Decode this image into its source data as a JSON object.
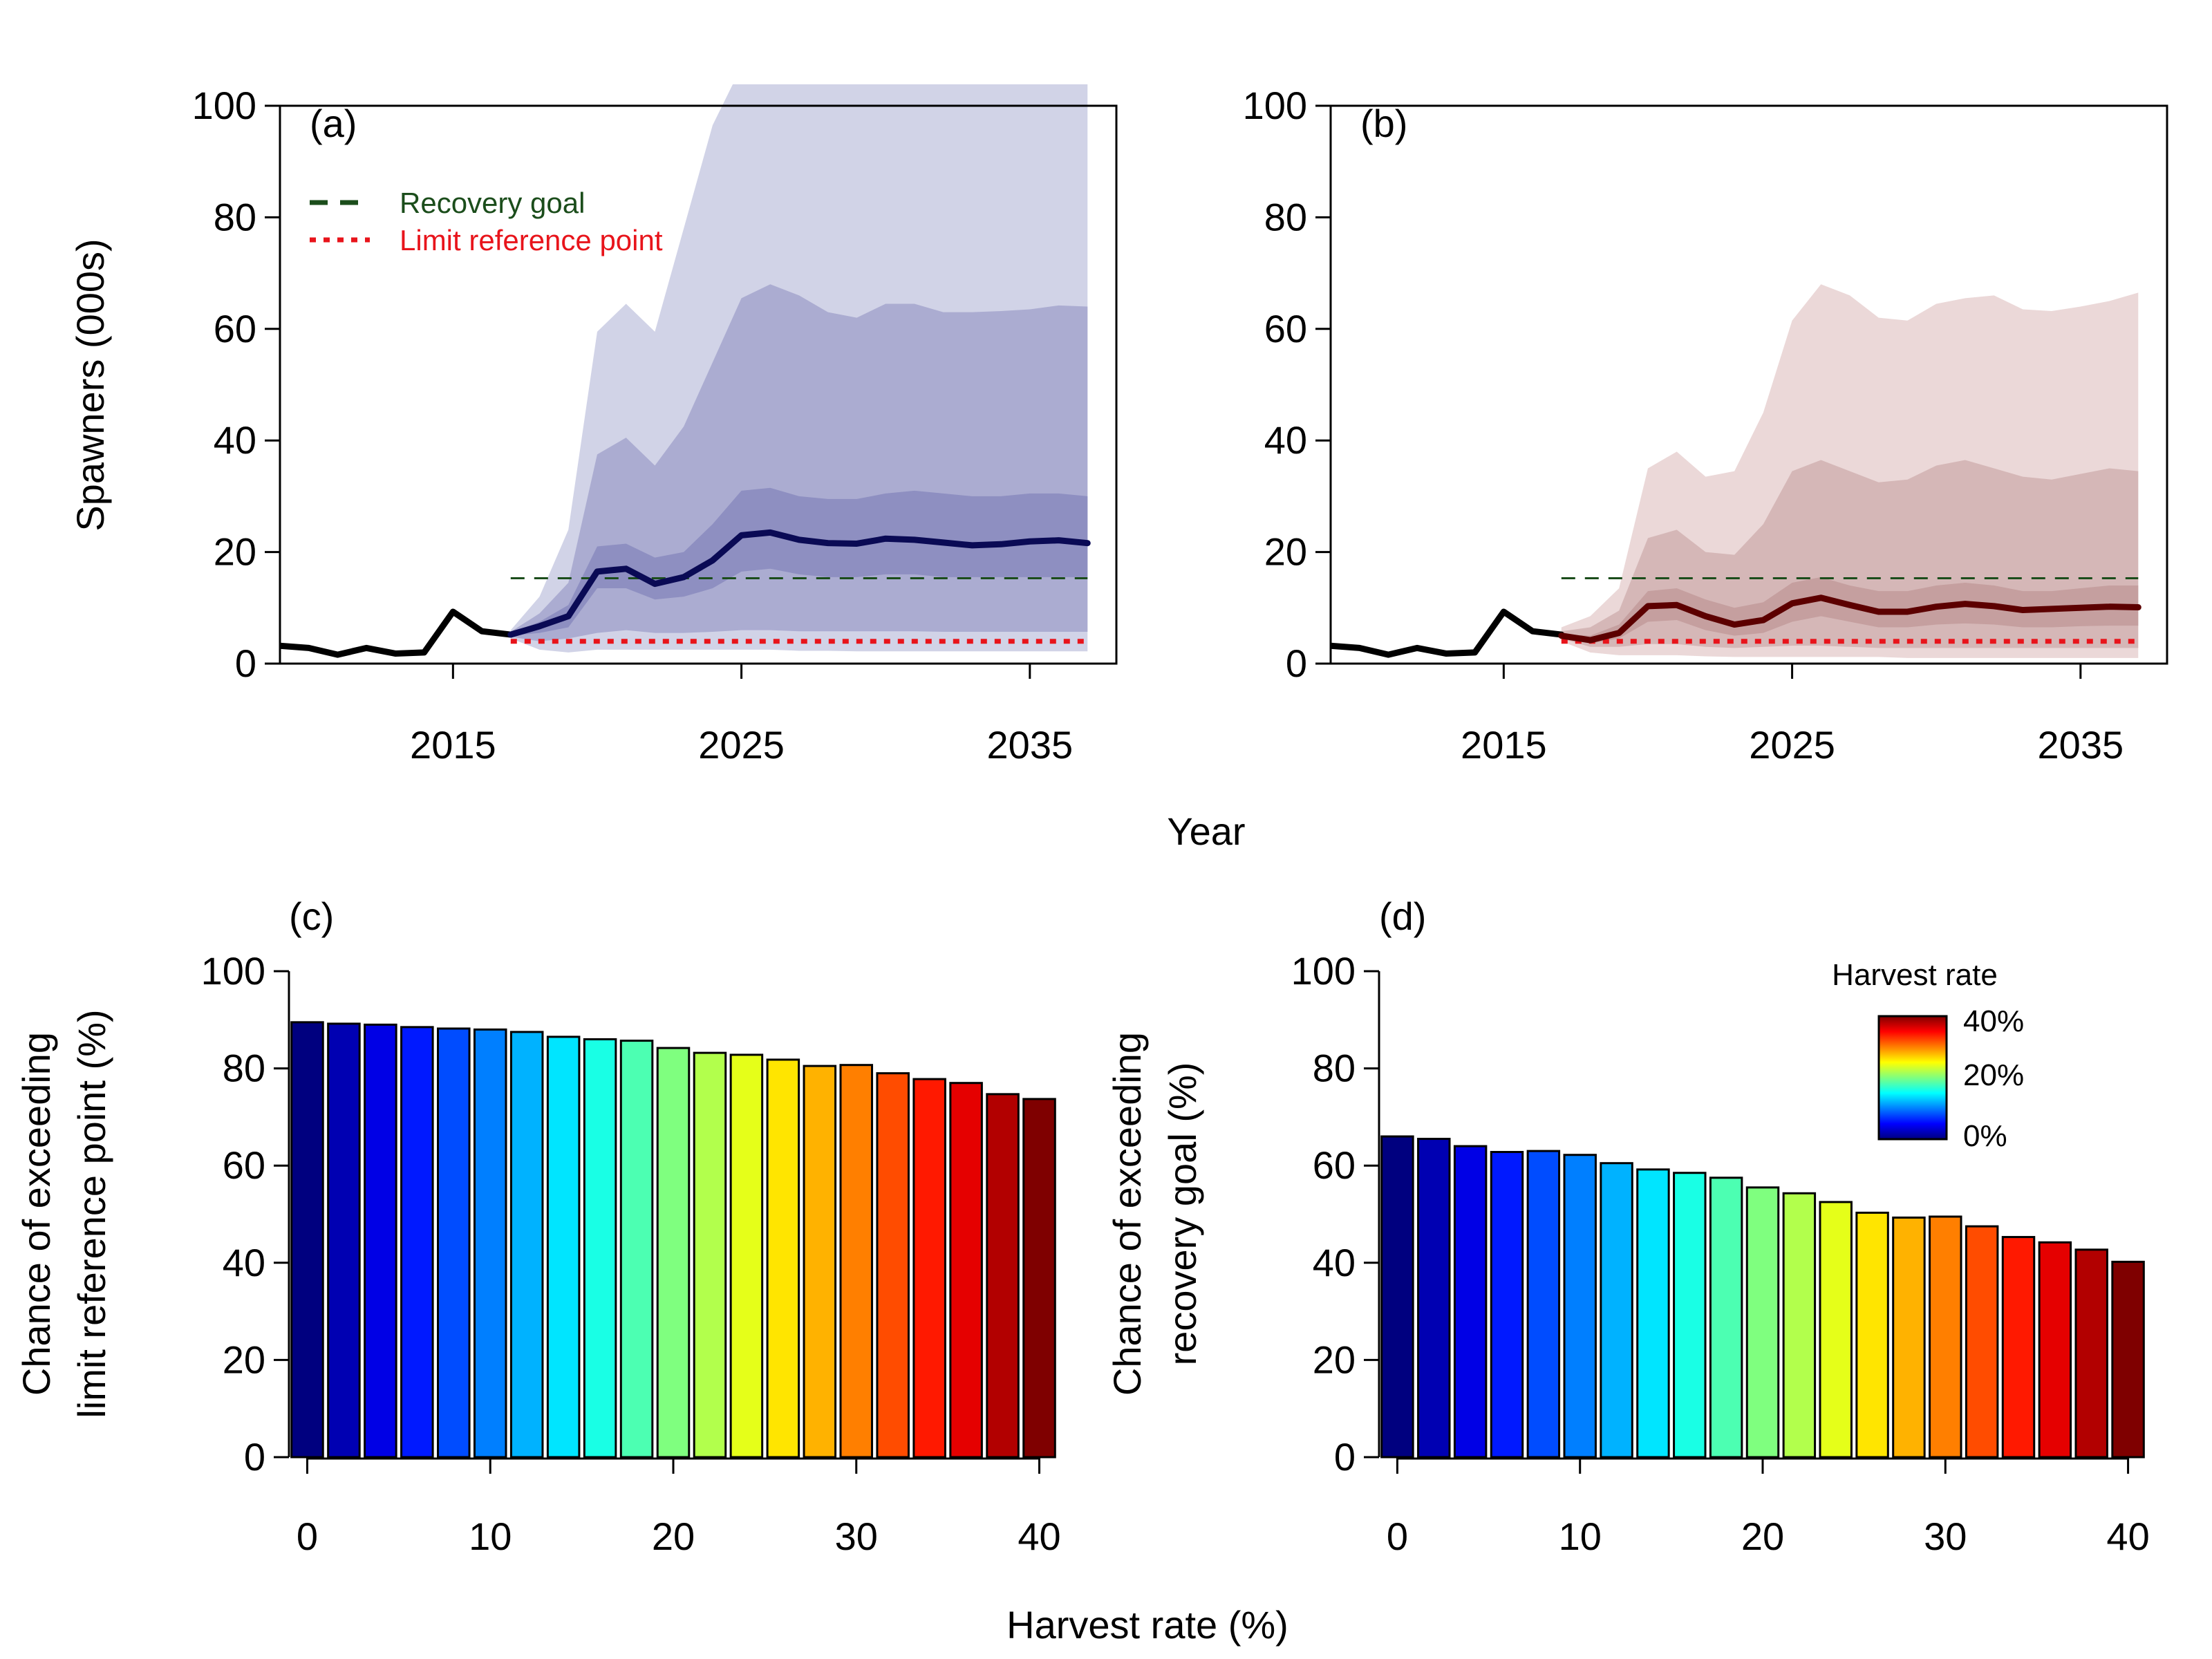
{
  "colors": {
    "blue_line": "#0a0a55",
    "blue_band_dark": "#8e8fc1",
    "blue_band_mid": "#abacd1",
    "blue_band_light": "#d1d3e7",
    "red_line": "#5c0000",
    "red_band_dark": "#c59f9f",
    "red_band_mid": "#d5b7b7",
    "red_band_light": "#ebd8d8",
    "recovery_goal": "#1b4d1b",
    "limit_ref": "#e8141b",
    "historical": "#000000"
  },
  "shared": {
    "top_xlabel": "Year",
    "bottom_xlabel": "Harvest rate (%)"
  },
  "chart_data": [
    {
      "id": "a",
      "type": "line",
      "panel_label": "(a)",
      "ylabel": "Spawners (000s)",
      "xlim": [
        2009,
        2038
      ],
      "ylim": [
        0,
        100
      ],
      "xticks": [
        2015,
        2025,
        2035
      ],
      "yticks": [
        0,
        20,
        40,
        60,
        80,
        100
      ],
      "historical": {
        "x": [
          2009,
          2010,
          2011,
          2012,
          2013,
          2014,
          2015,
          2016,
          2017
        ],
        "y": [
          3.2,
          2.8,
          1.6,
          2.8,
          1.8,
          2.0,
          9.3,
          5.8,
          5.2
        ]
      },
      "projection": {
        "x": [
          2017,
          2018,
          2019,
          2020,
          2021,
          2022,
          2023,
          2024,
          2025,
          2026,
          2027,
          2028,
          2029,
          2030,
          2031,
          2032,
          2033,
          2034,
          2035,
          2036,
          2037
        ],
        "median": [
          5.2,
          6.7,
          8.5,
          16.5,
          17.0,
          14.3,
          15.5,
          18.5,
          23.0,
          23.5,
          22.2,
          21.6,
          21.5,
          22.4,
          22.2,
          21.7,
          21.2,
          21.4,
          21.9,
          22.1,
          21.6
        ],
        "outer": {
          "lower": [
            4.5,
            2.5,
            2.0,
            2.5,
            2.5,
            2.5,
            2.5,
            2.5,
            2.5,
            2.5,
            2.3,
            2.3,
            2.2,
            2.2,
            2.2,
            2.2,
            2.2,
            2.2,
            2.2,
            2.2,
            2.2
          ],
          "upper": [
            6.0,
            12.0,
            24.0,
            59.5,
            64.5,
            59.5,
            78.0,
            96.5,
            107,
            107,
            107,
            107,
            107,
            107,
            107,
            107,
            107,
            107,
            107,
            107,
            107
          ]
        },
        "middle": {
          "lower": [
            4.8,
            4.0,
            4.5,
            5.5,
            6.0,
            5.5,
            5.5,
            5.7,
            6.0,
            6.0,
            5.8,
            5.8,
            5.8,
            5.8,
            5.8,
            5.7,
            5.7,
            5.7,
            5.7,
            5.7,
            5.7
          ],
          "upper": [
            5.7,
            9.0,
            14.5,
            37.5,
            40.5,
            35.5,
            42.5,
            54.0,
            65.5,
            68.0,
            66.0,
            63.0,
            62.0,
            64.5,
            64.5,
            63.0,
            63.0,
            63.2,
            63.5,
            64.2,
            64.0
          ]
        },
        "inner": {
          "lower": [
            5.0,
            5.5,
            6.5,
            13.5,
            13.5,
            11.5,
            12.0,
            13.5,
            16.5,
            17.0,
            16.0,
            15.5,
            15.5,
            16.0,
            16.0,
            15.5,
            15.5,
            15.5,
            15.5,
            15.5,
            15.5
          ],
          "upper": [
            5.4,
            7.5,
            10.5,
            21.0,
            21.5,
            19.0,
            20.0,
            25.0,
            31.0,
            31.5,
            30.0,
            29.5,
            29.5,
            30.5,
            31.0,
            30.5,
            30.0,
            30.0,
            30.5,
            30.5,
            30.0
          ]
        }
      },
      "recovery_goal": {
        "y": 15.3,
        "x0": 2017,
        "x1": 2037
      },
      "limit_reference_point": {
        "y": 4.0,
        "x0": 2017,
        "x1": 2037
      },
      "legend": [
        {
          "label": "Recovery goal",
          "style": "dashed",
          "color": "#1b4d1b"
        },
        {
          "label": "Limit reference point",
          "style": "dotted",
          "color": "#e8141b"
        }
      ]
    },
    {
      "id": "b",
      "type": "line",
      "panel_label": "(b)",
      "xlim": [
        2009,
        2038
      ],
      "ylim": [
        0,
        100
      ],
      "xticks": [
        2015,
        2025,
        2035
      ],
      "yticks": [
        0,
        20,
        40,
        60,
        80,
        100
      ],
      "historical": {
        "x": [
          2009,
          2010,
          2011,
          2012,
          2013,
          2014,
          2015,
          2016,
          2017
        ],
        "y": [
          3.2,
          2.8,
          1.6,
          2.8,
          1.8,
          2.0,
          9.3,
          5.8,
          5.2
        ]
      },
      "projection": {
        "x": [
          2017,
          2018,
          2019,
          2020,
          2021,
          2022,
          2023,
          2024,
          2025,
          2026,
          2027,
          2028,
          2029,
          2030,
          2031,
          2032,
          2033,
          2034,
          2035,
          2036,
          2037
        ],
        "median": [
          5.0,
          4.2,
          5.5,
          10.3,
          10.5,
          8.5,
          7.0,
          7.8,
          10.8,
          11.8,
          10.5,
          9.3,
          9.3,
          10.2,
          10.7,
          10.3,
          9.6,
          9.8,
          10.0,
          10.2,
          10.1
        ],
        "outer": {
          "lower": [
            4.0,
            2.0,
            1.5,
            1.5,
            1.5,
            1.3,
            1.2,
            1.2,
            1.2,
            1.2,
            1.2,
            1.2,
            1.0,
            1.0,
            1.0,
            1.0,
            1.0,
            1.0,
            1.0,
            1.0,
            1.0
          ],
          "upper": [
            6.5,
            8.5,
            13.5,
            35.0,
            38.0,
            33.5,
            34.5,
            45.0,
            61.5,
            68.0,
            66.0,
            62.0,
            61.5,
            64.5,
            65.5,
            66.0,
            63.5,
            63.2,
            64.0,
            65.0,
            66.5
          ]
        },
        "middle": {
          "lower": [
            4.5,
            3.0,
            3.0,
            3.5,
            3.5,
            3.0,
            2.8,
            3.0,
            3.2,
            3.2,
            3.0,
            2.8,
            2.8,
            2.8,
            2.8,
            2.8,
            2.8,
            2.8,
            2.8,
            2.8,
            2.8
          ],
          "upper": [
            5.8,
            6.5,
            9.5,
            22.5,
            24.0,
            20.0,
            19.5,
            25.0,
            34.5,
            36.5,
            34.5,
            32.5,
            33.0,
            35.5,
            36.5,
            35.0,
            33.5,
            33.0,
            34.0,
            35.0,
            34.5
          ]
        },
        "inner": {
          "lower": [
            4.8,
            3.6,
            4.5,
            7.5,
            7.8,
            6.0,
            5.0,
            5.5,
            7.5,
            8.5,
            7.5,
            6.5,
            6.5,
            7.0,
            7.2,
            7.0,
            6.5,
            6.5,
            6.7,
            6.8,
            6.8
          ],
          "upper": [
            5.3,
            5.0,
            7.0,
            13.0,
            13.5,
            11.5,
            10.0,
            11.0,
            14.5,
            15.5,
            14.0,
            13.0,
            13.0,
            14.0,
            14.5,
            14.0,
            13.0,
            13.0,
            13.5,
            14.0,
            14.0
          ]
        }
      },
      "recovery_goal": {
        "y": 15.3,
        "x0": 2017,
        "x1": 2037
      },
      "limit_reference_point": {
        "y": 4.0,
        "x0": 2017,
        "x1": 2037
      }
    },
    {
      "id": "c",
      "type": "bar",
      "panel_label": "(c)",
      "ylabel_lines": [
        "Chance of exceeding",
        "limit reference point (%)"
      ],
      "categories": [
        0,
        2,
        4,
        6,
        8,
        10,
        12,
        14,
        16,
        18,
        20,
        22,
        24,
        26,
        28,
        30,
        32,
        34,
        36,
        38,
        40
      ],
      "values": [
        89.5,
        89.2,
        89.0,
        88.5,
        88.2,
        88.0,
        87.5,
        86.5,
        86.0,
        85.7,
        84.2,
        83.2,
        82.8,
        81.8,
        80.5,
        80.7,
        79.0,
        77.8,
        77.0,
        74.7,
        73.7
      ],
      "xlim": [
        -1.0,
        41.0
      ],
      "xticks": [
        0,
        10,
        20,
        30,
        40
      ],
      "ylim": [
        0,
        100
      ],
      "yticks": [
        0,
        20,
        40,
        60,
        80,
        100
      ]
    },
    {
      "id": "d",
      "type": "bar",
      "panel_label": "(d)",
      "ylabel_lines": [
        "Chance of exceeding",
        "recovery goal (%)"
      ],
      "categories": [
        0,
        2,
        4,
        6,
        8,
        10,
        12,
        14,
        16,
        18,
        20,
        22,
        24,
        26,
        28,
        30,
        32,
        34,
        36,
        38,
        40
      ],
      "values": [
        66.0,
        65.5,
        64.0,
        62.8,
        63.0,
        62.2,
        60.5,
        59.2,
        58.5,
        57.5,
        55.5,
        54.3,
        52.5,
        50.3,
        49.3,
        49.5,
        47.5,
        45.3,
        44.2,
        42.7,
        40.2
      ],
      "xlim": [
        -1.0,
        41.0
      ],
      "xticks": [
        0,
        10,
        20,
        30,
        40
      ],
      "ylim": [
        0,
        100
      ],
      "yticks": [
        0,
        20,
        40,
        60,
        80,
        100
      ],
      "colorbar": {
        "title": "Harvest rate",
        "labels": [
          "40%",
          "20%",
          "0%"
        ],
        "stops": [
          "#00007f",
          "#0000ff",
          "#007fff",
          "#00ffff",
          "#7fff7f",
          "#ffff00",
          "#ff7f00",
          "#ff0000",
          "#7f0000"
        ]
      }
    }
  ]
}
